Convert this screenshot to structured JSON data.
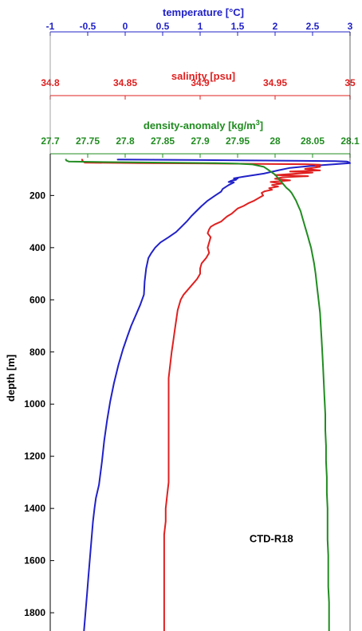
{
  "chart_data": {
    "type": "line",
    "y_axis": {
      "label": "depth [m]",
      "reversed": true,
      "ylim": [
        40,
        1870
      ],
      "ticks": [
        200,
        400,
        600,
        800,
        1000,
        1200,
        1400,
        1600,
        1800
      ],
      "tick_labels": [
        "200",
        "400",
        "600",
        "800",
        "1000",
        "1200",
        "1400",
        "1600",
        "1800"
      ]
    },
    "x_axes": [
      {
        "id": "temperature",
        "label": "temperature [°C]",
        "color": "#2121c8",
        "xlim": [
          -1,
          3
        ],
        "ticks": [
          -1,
          -0.5,
          0,
          0.5,
          1,
          1.5,
          2,
          2.5,
          3
        ],
        "tick_labels": [
          "-1",
          "-0.5",
          "0",
          "0.5",
          "1",
          "1.5",
          "2",
          "2.5",
          "3"
        ]
      },
      {
        "id": "salinity",
        "label": "salinity [psu]",
        "color": "#e02020",
        "xlim": [
          34.8,
          35
        ],
        "ticks": [
          34.8,
          34.85,
          34.9,
          34.95,
          35
        ],
        "tick_labels": [
          "34.8",
          "34.85",
          "34.9",
          "34.95",
          "35"
        ]
      },
      {
        "id": "density",
        "label": "density-anomaly [kg/m",
        "label_sup": "3",
        "label_end": "]",
        "color": "#218c21",
        "xlim": [
          27.7,
          28.1
        ],
        "ticks": [
          27.7,
          27.75,
          27.8,
          27.85,
          27.9,
          27.95,
          28,
          28.05,
          28.1
        ],
        "tick_labels": [
          "27.7",
          "27.75",
          "27.8",
          "27.85",
          "27.9",
          "27.95",
          "28",
          "28.05",
          "28.1"
        ]
      }
    ],
    "series": [
      {
        "axis": "temperature",
        "color": "#2121c8",
        "points": [
          [
            -0.1,
            60
          ],
          [
            -0.1,
            62
          ],
          [
            1.5,
            65
          ],
          [
            2.8,
            68
          ],
          [
            2.96,
            70
          ],
          [
            2.98,
            72
          ],
          [
            3.0,
            76
          ],
          [
            2.85,
            79
          ],
          [
            2.5,
            86
          ],
          [
            2.2,
            94
          ],
          [
            2.05,
            103
          ],
          [
            1.85,
            116
          ],
          [
            1.58,
            128
          ],
          [
            1.45,
            134
          ],
          [
            1.48,
            140
          ],
          [
            1.4,
            145
          ],
          [
            1.5,
            135
          ],
          [
            1.38,
            148
          ],
          [
            1.45,
            150
          ],
          [
            1.38,
            160
          ],
          [
            1.3,
            175
          ],
          [
            1.28,
            185
          ],
          [
            1.2,
            200
          ],
          [
            1.1,
            220
          ],
          [
            1.02,
            240
          ],
          [
            0.95,
            260
          ],
          [
            0.88,
            280
          ],
          [
            0.82,
            300
          ],
          [
            0.75,
            320
          ],
          [
            0.68,
            340
          ],
          [
            0.58,
            360
          ],
          [
            0.47,
            380
          ],
          [
            0.4,
            400
          ],
          [
            0.35,
            420
          ],
          [
            0.31,
            440
          ],
          [
            0.28,
            480
          ],
          [
            0.26,
            530
          ],
          [
            0.25,
            580
          ],
          [
            0.2,
            620
          ],
          [
            0.14,
            660
          ],
          [
            0.08,
            700
          ],
          [
            0.03,
            740
          ],
          [
            -0.03,
            790
          ],
          [
            -0.09,
            850
          ],
          [
            -0.15,
            920
          ],
          [
            -0.2,
            990
          ],
          [
            -0.24,
            1060
          ],
          [
            -0.28,
            1140
          ],
          [
            -0.31,
            1220
          ],
          [
            -0.35,
            1310
          ],
          [
            -0.39,
            1360
          ],
          [
            -0.41,
            1400
          ],
          [
            -0.43,
            1450
          ],
          [
            -0.45,
            1520
          ],
          [
            -0.47,
            1590
          ],
          [
            -0.49,
            1660
          ],
          [
            -0.51,
            1730
          ],
          [
            -0.53,
            1800
          ],
          [
            -0.55,
            1870
          ]
        ]
      },
      {
        "axis": "salinity",
        "color": "#e02020",
        "points": [
          [
            34.8215,
            60
          ],
          [
            34.8212,
            64
          ],
          [
            34.822,
            70
          ],
          [
            34.823,
            74
          ],
          [
            34.86,
            76
          ],
          [
            34.9,
            77
          ],
          [
            34.94,
            79
          ],
          [
            34.97,
            80
          ],
          [
            34.98,
            82
          ],
          [
            34.977,
            86
          ],
          [
            34.98,
            90
          ],
          [
            34.97,
            98
          ],
          [
            34.98,
            104
          ],
          [
            34.96,
            108
          ],
          [
            34.975,
            112
          ],
          [
            34.96,
            118
          ],
          [
            34.95,
            122
          ],
          [
            34.972,
            126
          ],
          [
            34.955,
            130
          ],
          [
            34.95,
            136
          ],
          [
            34.96,
            142
          ],
          [
            34.947,
            148
          ],
          [
            34.955,
            154
          ],
          [
            34.948,
            160
          ],
          [
            34.952,
            166
          ],
          [
            34.946,
            172
          ],
          [
            34.948,
            178
          ],
          [
            34.943,
            184
          ],
          [
            34.941,
            190
          ],
          [
            34.942,
            200
          ],
          [
            34.939,
            210
          ],
          [
            34.936,
            220
          ],
          [
            34.932,
            230
          ],
          [
            34.929,
            240
          ],
          [
            34.925,
            250
          ],
          [
            34.923,
            260
          ],
          [
            34.921,
            270
          ],
          [
            34.918,
            280
          ],
          [
            34.916,
            290
          ],
          [
            34.914,
            300
          ],
          [
            34.91,
            310
          ],
          [
            34.907,
            320
          ],
          [
            34.906,
            330
          ],
          [
            34.905,
            345
          ],
          [
            34.907,
            360
          ],
          [
            34.906,
            380
          ],
          [
            34.905,
            400
          ],
          [
            34.906,
            420
          ],
          [
            34.904,
            440
          ],
          [
            34.901,
            460
          ],
          [
            34.9,
            480
          ],
          [
            34.9,
            500
          ],
          [
            34.898,
            520
          ],
          [
            34.895,
            540
          ],
          [
            34.892,
            560
          ],
          [
            34.889,
            580
          ],
          [
            34.887,
            600
          ],
          [
            34.886,
            620
          ],
          [
            34.885,
            640
          ],
          [
            34.884,
            680
          ],
          [
            34.883,
            720
          ],
          [
            34.882,
            760
          ],
          [
            34.881,
            800
          ],
          [
            34.88,
            850
          ],
          [
            34.879,
            900
          ],
          [
            34.879,
            950
          ],
          [
            34.879,
            1000
          ],
          [
            34.879,
            1050
          ],
          [
            34.879,
            1100
          ],
          [
            34.879,
            1150
          ],
          [
            34.879,
            1200
          ],
          [
            34.879,
            1250
          ],
          [
            34.879,
            1300
          ],
          [
            34.878,
            1350
          ],
          [
            34.877,
            1400
          ],
          [
            34.877,
            1450
          ],
          [
            34.876,
            1500
          ],
          [
            34.876,
            1550
          ],
          [
            34.876,
            1600
          ],
          [
            34.876,
            1650
          ],
          [
            34.876,
            1700
          ],
          [
            34.876,
            1750
          ],
          [
            34.876,
            1800
          ],
          [
            34.876,
            1870
          ]
        ]
      },
      {
        "axis": "density",
        "color": "#218c21",
        "points": [
          [
            27.7205,
            60
          ],
          [
            27.7215,
            66
          ],
          [
            27.725,
            70
          ],
          [
            27.78,
            72
          ],
          [
            27.85,
            74
          ],
          [
            27.92,
            76
          ],
          [
            27.95,
            78
          ],
          [
            27.97,
            81
          ],
          [
            27.985,
            90
          ],
          [
            27.99,
            100
          ],
          [
            27.995,
            110
          ],
          [
            28.0,
            120
          ],
          [
            28.003,
            130
          ],
          [
            28.006,
            140
          ],
          [
            28.009,
            150
          ],
          [
            28.012,
            160
          ],
          [
            28.015,
            170
          ],
          [
            28.019,
            180
          ],
          [
            28.022,
            190
          ],
          [
            28.024,
            200
          ],
          [
            28.028,
            220
          ],
          [
            28.031,
            240
          ],
          [
            28.034,
            260
          ],
          [
            28.036,
            280
          ],
          [
            28.038,
            300
          ],
          [
            28.04,
            320
          ],
          [
            28.042,
            340
          ],
          [
            28.044,
            360
          ],
          [
            28.046,
            380
          ],
          [
            28.048,
            400
          ],
          [
            28.05,
            430
          ],
          [
            28.052,
            460
          ],
          [
            28.054,
            500
          ],
          [
            28.056,
            550
          ],
          [
            28.058,
            600
          ],
          [
            28.06,
            650
          ],
          [
            28.061,
            700
          ],
          [
            28.062,
            750
          ],
          [
            28.063,
            800
          ],
          [
            28.064,
            860
          ],
          [
            28.065,
            920
          ],
          [
            28.066,
            980
          ],
          [
            28.067,
            1040
          ],
          [
            28.067,
            1100
          ],
          [
            28.068,
            1160
          ],
          [
            28.068,
            1220
          ],
          [
            28.069,
            1280
          ],
          [
            28.069,
            1340
          ],
          [
            28.07,
            1400
          ],
          [
            28.07,
            1460
          ],
          [
            28.07,
            1520
          ],
          [
            28.071,
            1580
          ],
          [
            28.071,
            1640
          ],
          [
            28.071,
            1700
          ],
          [
            28.072,
            1760
          ],
          [
            28.072,
            1820
          ],
          [
            28.072,
            1870
          ]
        ]
      }
    ],
    "annotations": [
      {
        "text": "CTD-R18",
        "x_axis": "temperature",
        "x": 1.95,
        "y": 1530
      }
    ]
  }
}
